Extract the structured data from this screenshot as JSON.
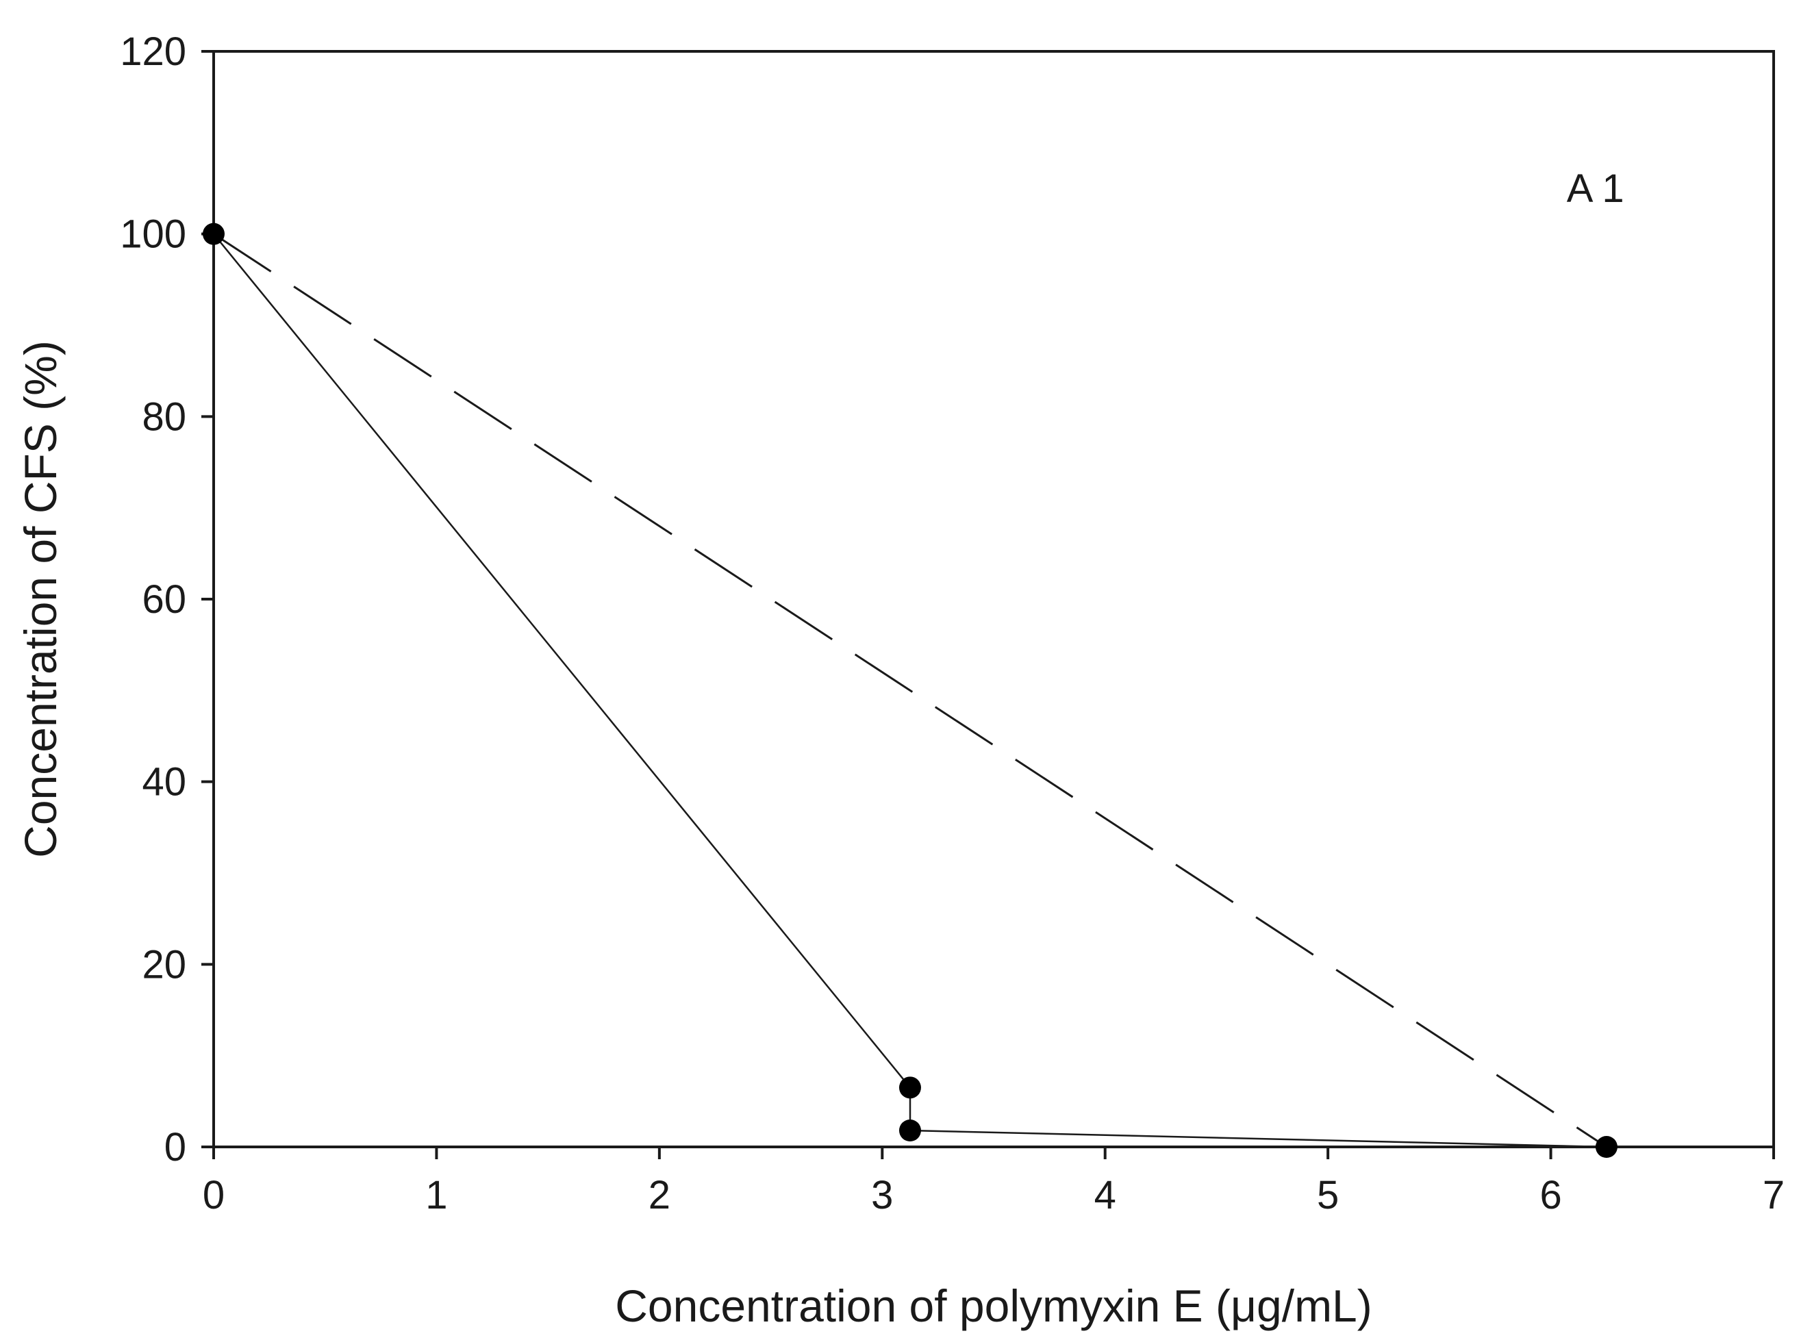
{
  "chart_data": {
    "type": "line",
    "title": "",
    "xlabel": "Concentration of polymyxin E (μg/mL)",
    "ylabel": "Concentration of CFS (%)",
    "xlim": [
      0,
      7
    ],
    "ylim": [
      0,
      120
    ],
    "xticks": [
      0,
      1,
      2,
      3,
      4,
      5,
      6,
      7
    ],
    "yticks": [
      0,
      20,
      40,
      60,
      80,
      100,
      120
    ],
    "xtick_labels": [
      "0",
      "1",
      "2",
      "3",
      "4",
      "5",
      "6",
      "7"
    ],
    "ytick_labels": [
      "0",
      "20",
      "40",
      "60",
      "80",
      "100",
      "120"
    ],
    "grid": false,
    "annotations": [
      {
        "text": "A 1",
        "x": 6.2,
        "y": 105
      }
    ],
    "series": [
      {
        "style": "solid",
        "markers": true,
        "x": [
          0,
          3.125,
          3.125,
          6.25
        ],
        "y": [
          100,
          6.5,
          1.8,
          0
        ]
      },
      {
        "style": "dashed",
        "markers": false,
        "x": [
          0,
          6.25
        ],
        "y": [
          100,
          0
        ]
      }
    ],
    "colors": {
      "line": "#1a1a1a",
      "marker": "#000000",
      "axis": "#1a1a1a"
    }
  }
}
